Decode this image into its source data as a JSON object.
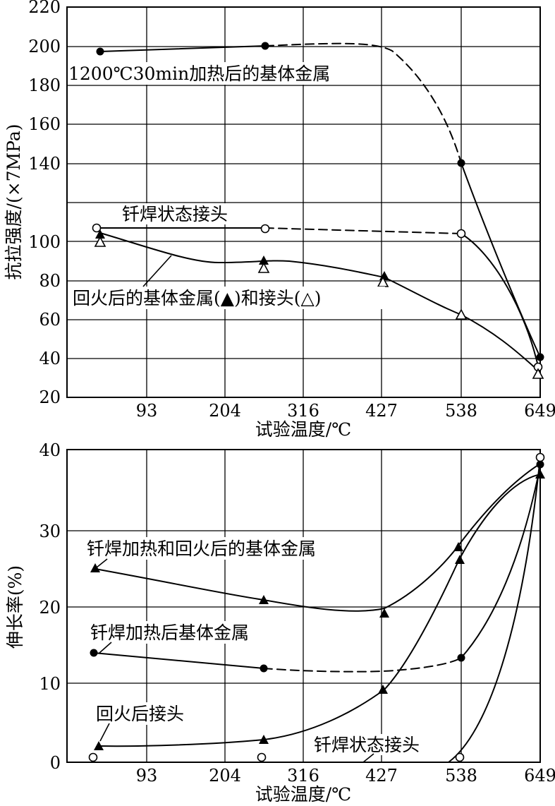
{
  "chart_data": [
    {
      "type": "line",
      "xlabel": "试验温度/℃",
      "ylabel": "抗拉强度/(×7MPa)",
      "x_ticks": [
        "93",
        "204",
        "316",
        "427",
        "538",
        "649"
      ],
      "y_ticks": [
        "20",
        "40",
        "60",
        "80",
        "100",
        "140",
        "160",
        "180",
        "200",
        "220"
      ],
      "xlim": [
        0,
        649
      ],
      "ylim": [
        20,
        220
      ],
      "grid": true,
      "series": [
        {
          "label": "1200℃30min加热后的基体金属",
          "marker": "filled-circle",
          "points": [
            [
              45,
              197
            ],
            [
              260,
              200
            ],
            [
              538,
              140
            ],
            [
              649,
              40
            ]
          ],
          "dashed_segment": "260-538"
        },
        {
          "label": "钎焊状态接头",
          "marker": "open-circle",
          "points": [
            [
              38,
              108
            ],
            [
              260,
              107
            ],
            [
              538,
              105
            ],
            [
              649,
              35
            ]
          ],
          "dashed_segment": "260-538"
        },
        {
          "label": "回火后的基体金属(▲)",
          "marker": "filled-triangle",
          "points": [
            [
              45,
              103
            ],
            [
              260,
              90
            ],
            [
              427,
              82
            ],
            [
              649,
              40
            ]
          ]
        },
        {
          "label": "接头(△)",
          "marker": "open-triangle",
          "points": [
            [
              45,
              100
            ],
            [
              260,
              87
            ],
            [
              427,
              79
            ],
            [
              538,
              62
            ],
            [
              649,
              31
            ]
          ]
        }
      ],
      "annotations": [
        "1200℃30min加热后的基体金属",
        "钎焊状态接头",
        "回火后的基体金属(▲)和接头(△)"
      ]
    },
    {
      "type": "line",
      "xlabel": "试验温度/℃",
      "ylabel": "伸长率(%)",
      "x_ticks": [
        "93",
        "204",
        "316",
        "427",
        "538",
        "649"
      ],
      "y_ticks": [
        "0",
        "10",
        "20",
        "30",
        "40"
      ],
      "xlim": [
        0,
        649
      ],
      "ylim": [
        0,
        40
      ],
      "grid": true,
      "series": [
        {
          "label": "钎焊加热和回火后的基体金属",
          "marker": "filled-triangle",
          "points": [
            [
              38,
              25
            ],
            [
              260,
              21
            ],
            [
              427,
              19
            ],
            [
              538,
              28
            ],
            [
              649,
              38
            ]
          ]
        },
        {
          "label": "钎焊加热后基体金属",
          "marker": "filled-circle",
          "points": [
            [
              38,
              14
            ],
            [
              260,
              12
            ],
            [
              538,
              13.4
            ],
            [
              649,
              38.3
            ]
          ],
          "dashed_segment": "260-538"
        },
        {
          "label": "回火后接头",
          "marker": "filled-triangle",
          "points": [
            [
              45,
              2.1
            ],
            [
              260,
              2.9
            ],
            [
              427,
              9.1
            ],
            [
              538,
              26.2
            ],
            [
              649,
              37.1
            ]
          ]
        },
        {
          "label": "钎焊状态接头",
          "marker": "open-circle",
          "points": [
            [
              35,
              0.6
            ],
            [
              260,
              0.6
            ],
            [
              538,
              0.7
            ],
            [
              649,
              39.2
            ]
          ]
        }
      ],
      "annotations": [
        "钎焊加热和回火后的基体金属",
        "钎焊加热后基体金属",
        "回火后接头",
        "钎焊状态接头"
      ]
    }
  ]
}
